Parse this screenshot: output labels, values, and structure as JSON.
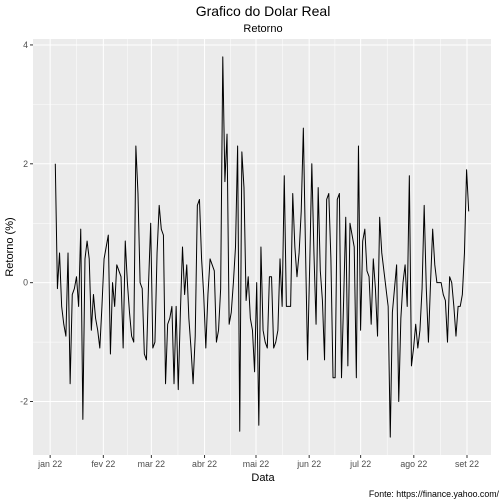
{
  "chart_data": {
    "type": "line",
    "title": "Grafico do Dolar Real",
    "subtitle": "Retorno",
    "xlabel": "Data",
    "ylabel": "Retorno (%)",
    "caption": "Fonte: https://finance.yahoo.com/",
    "x_start": "2022-01-04",
    "x_end": "2022-09-02",
    "xlim": [
      "2021-12-22",
      "2022-09-15"
    ],
    "ylim": [
      -2.9,
      4.1
    ],
    "x_ticks": [
      {
        "date": "2022-01-01",
        "label": "jan 22"
      },
      {
        "date": "2022-02-01",
        "label": "fev 22"
      },
      {
        "date": "2022-03-01",
        "label": "mar 22"
      },
      {
        "date": "2022-04-01",
        "label": "abr 22"
      },
      {
        "date": "2022-05-01",
        "label": "mai 22"
      },
      {
        "date": "2022-06-01",
        "label": "jun 22"
      },
      {
        "date": "2022-07-01",
        "label": "jul 22"
      },
      {
        "date": "2022-08-01",
        "label": "ago 22"
      },
      {
        "date": "2022-09-01",
        "label": "set 22"
      }
    ],
    "y_ticks": [
      {
        "value": 4,
        "label": "4"
      },
      {
        "value": 2,
        "label": "2"
      },
      {
        "value": 0,
        "label": "0"
      },
      {
        "value": -2,
        "label": "-2"
      }
    ],
    "grid": true,
    "legend": "none",
    "line_color": "#000000",
    "panel_color": "#ebebeb",
    "grid_color": "#ffffff",
    "series": [
      {
        "values": [
          2.0,
          -0.1,
          0.5,
          -0.4,
          -0.7,
          -0.9,
          0.5,
          -1.7,
          -0.2,
          -0.1,
          0.1,
          -0.4,
          0.9,
          -2.3,
          0.4,
          0.7,
          0.4,
          -0.8,
          -0.2,
          -0.6,
          -0.8,
          -1.1,
          -0.4,
          0.4,
          0.6,
          0.8,
          -1.2,
          0.0,
          -0.4,
          0.3,
          0.2,
          0.1,
          -1.1,
          0.7,
          0.0,
          -0.5,
          -0.9,
          -1.0,
          2.3,
          1.5,
          0.0,
          -0.1,
          -1.2,
          -1.3,
          0.0,
          1.0,
          -1.1,
          -1.0,
          0.5,
          1.3,
          0.9,
          0.8,
          -1.7,
          -0.7,
          -0.6,
          -0.4,
          -1.7,
          -0.4,
          -1.8,
          -0.5,
          0.6,
          -0.2,
          0.3,
          -0.6,
          -1.1,
          -1.7,
          -0.9,
          1.3,
          1.4,
          0.4,
          -0.2,
          -1.1,
          -0.2,
          0.4,
          0.3,
          0.2,
          -1.0,
          -0.8,
          -0.1,
          3.8,
          1.7,
          2.5,
          -0.7,
          -0.5,
          0.0,
          0.6,
          2.3,
          -2.5,
          2.2,
          1.6,
          -0.3,
          0.1,
          -0.6,
          -0.8,
          -1.5,
          0.0,
          -2.4,
          0.6,
          -0.8,
          -1.0,
          -1.1,
          0.1,
          0.1,
          -1.1,
          -1.0,
          -0.8,
          0.4,
          -0.4,
          1.8,
          -0.4,
          -0.4,
          -0.4,
          1.5,
          0.6,
          0.1,
          0.5,
          1.2,
          2.6,
          0.6,
          -1.3,
          0.3,
          2.0,
          0.5,
          -0.7,
          1.6,
          0.2,
          -0.3,
          -1.3,
          1.4,
          1.5,
          0.4,
          -1.6,
          -1.6,
          1.4,
          1.5,
          -1.6,
          -0.3,
          1.1,
          -1.4,
          1.0,
          0.8,
          0.6,
          -1.6,
          2.3,
          -0.8,
          0.7,
          0.9,
          0.2,
          0.1,
          -0.7,
          0.4,
          -0.1,
          -0.9,
          1.1,
          0.5,
          0.2,
          -0.1,
          -0.4,
          -2.6,
          -0.5,
          -0.1,
          0.3,
          -2.0,
          -0.6,
          0.0,
          0.3,
          -0.4,
          1.8,
          -1.4,
          -1.1,
          -0.7,
          -1.1,
          -0.8,
          -0.1,
          1.3,
          -0.1,
          -1.0,
          0.0,
          0.9,
          0.3,
          0.0,
          0.0,
          0.0,
          -0.2,
          -0.3,
          -1.0,
          0.1,
          0.0,
          -0.4,
          -0.9,
          -0.4,
          -0.4,
          -0.2,
          0.5,
          1.9,
          1.2
        ]
      }
    ]
  }
}
